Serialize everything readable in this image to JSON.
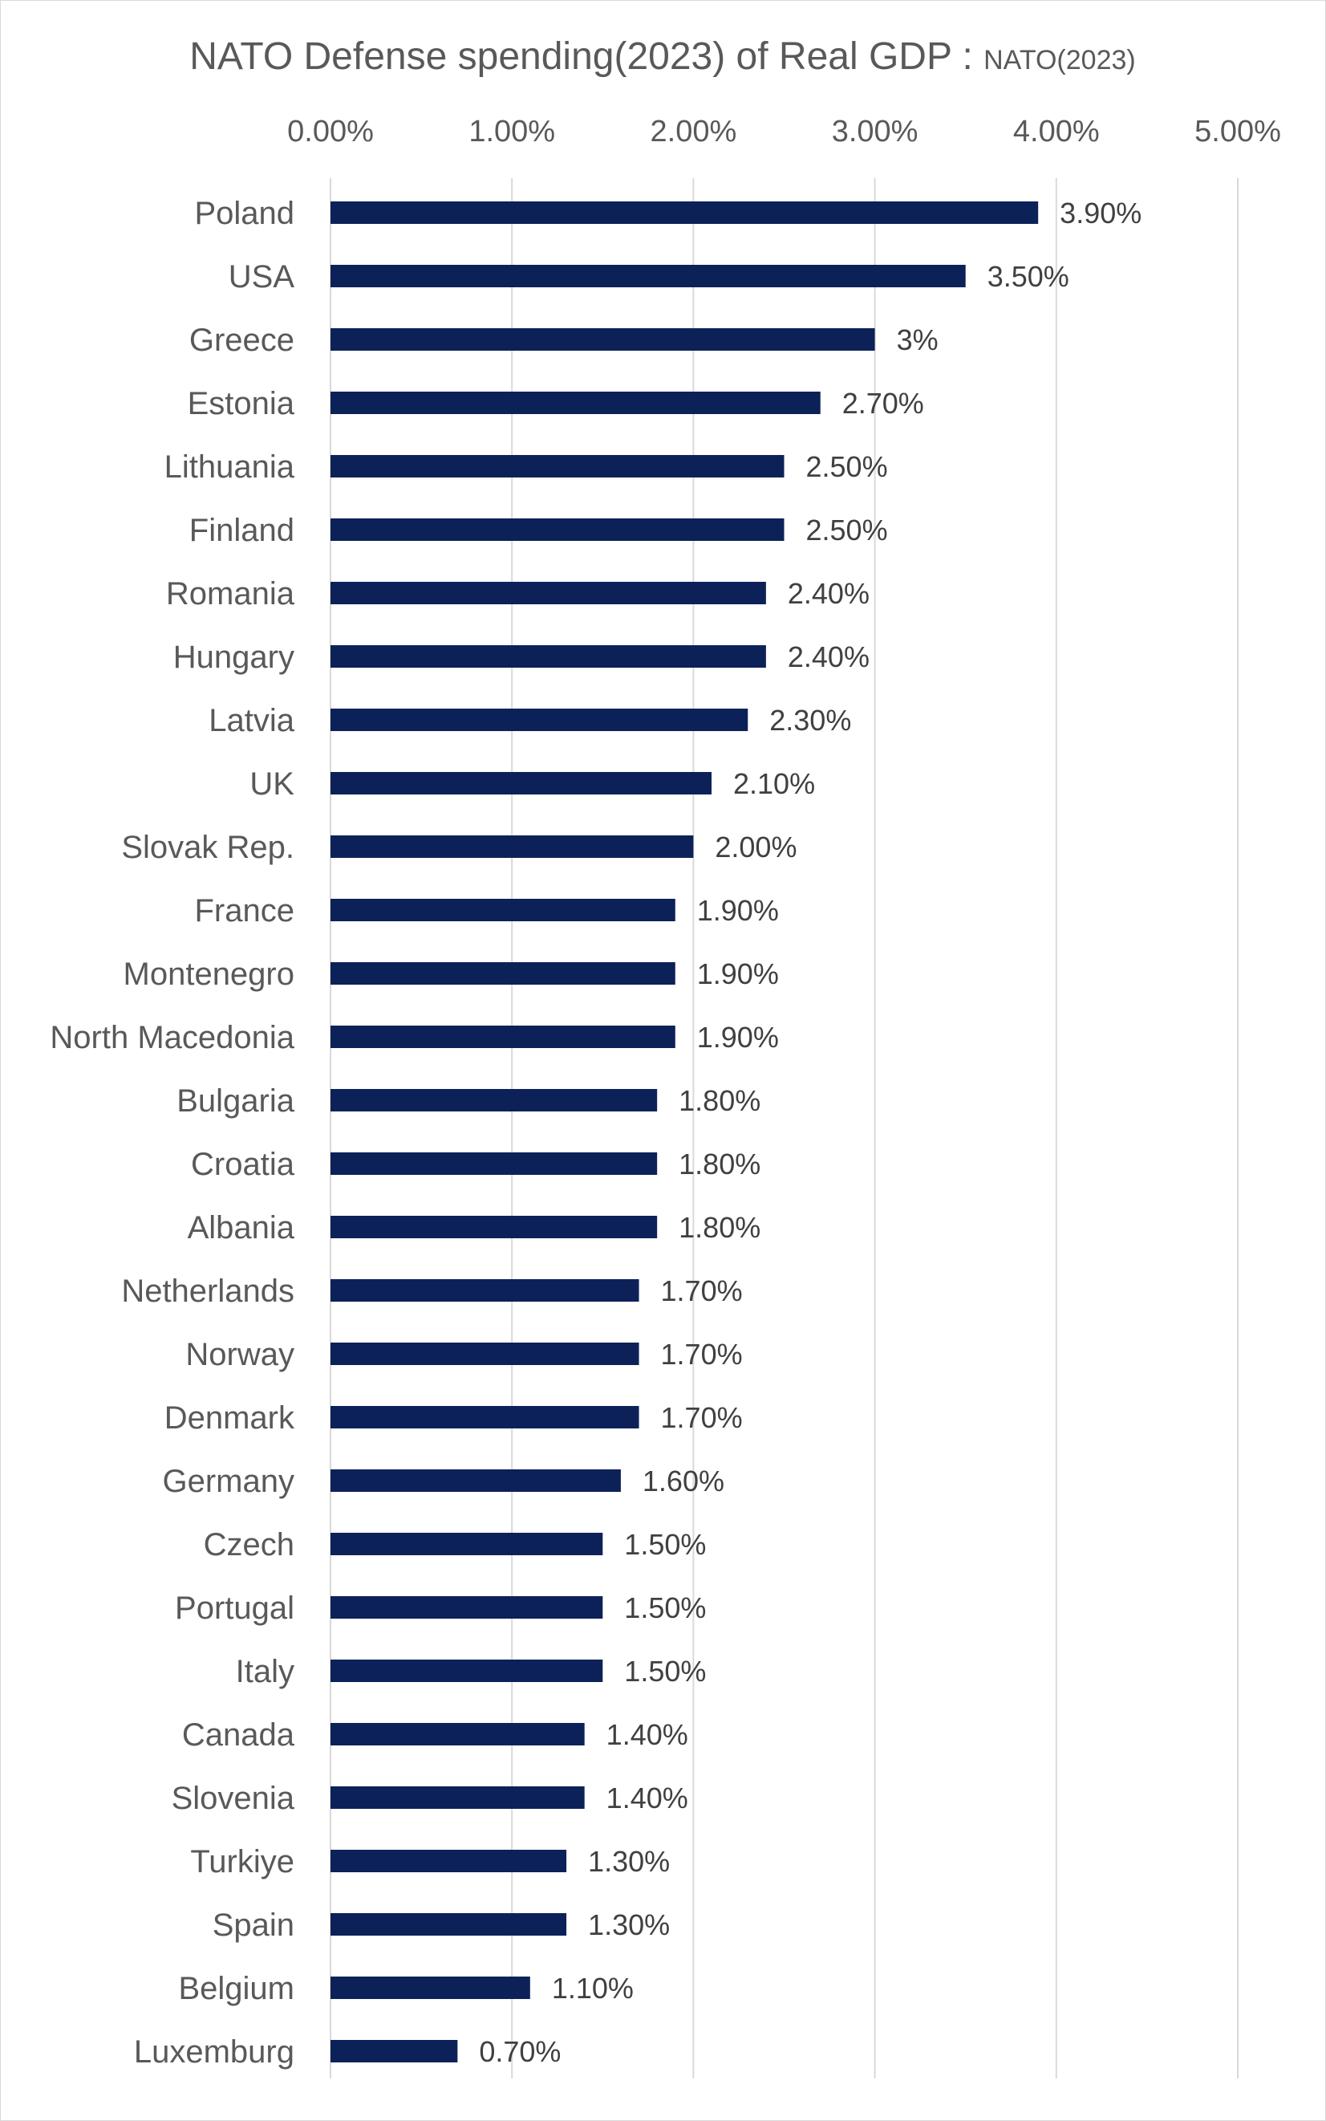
{
  "chart_data": {
    "type": "bar",
    "orientation": "horizontal",
    "title": "NATO Defense spending(2023) of Real GDP : ",
    "subtitle": "NATO(2023)",
    "xlim": [
      0,
      5
    ],
    "x_ticks": [
      0,
      1,
      2,
      3,
      4,
      5
    ],
    "x_tick_labels": [
      "0.00%",
      "1.00%",
      "2.00%",
      "3.00%",
      "4.00%",
      "5.00%"
    ],
    "x_axis_position": "top",
    "grid": true,
    "bar_color": "#0d2159",
    "categories": [
      "Poland",
      "USA",
      "Greece",
      "Estonia",
      "Lithuania",
      "Finland",
      "Romania",
      "Hungary",
      "Latvia",
      "UK",
      "Slovak Rep.",
      "France",
      "Montenegro",
      "North Macedonia",
      "Bulgaria",
      "Croatia",
      "Albania",
      "Netherlands",
      "Norway",
      "Denmark",
      "Germany",
      "Czech",
      "Portugal",
      "Italy",
      "Canada",
      "Slovenia",
      "Turkiye",
      "Spain",
      "Belgium",
      "Luxemburg"
    ],
    "values": [
      3.9,
      3.5,
      3.0,
      2.7,
      2.5,
      2.5,
      2.4,
      2.4,
      2.3,
      2.1,
      2.0,
      1.9,
      1.9,
      1.9,
      1.8,
      1.8,
      1.8,
      1.7,
      1.7,
      1.7,
      1.6,
      1.5,
      1.5,
      1.5,
      1.4,
      1.4,
      1.3,
      1.3,
      1.1,
      0.7
    ],
    "data_labels": [
      "3.90%",
      "3.50%",
      "3%",
      "2.70%",
      "2.50%",
      "2.50%",
      "2.40%",
      "2.40%",
      "2.30%",
      "2.10%",
      "2.00%",
      "1.90%",
      "1.90%",
      "1.90%",
      "1.80%",
      "1.80%",
      "1.80%",
      "1.70%",
      "1.70%",
      "1.70%",
      "1.60%",
      "1.50%",
      "1.50%",
      "1.50%",
      "1.40%",
      "1.40%",
      "1.30%",
      "1.30%",
      "1.10%",
      "0.70%"
    ]
  }
}
